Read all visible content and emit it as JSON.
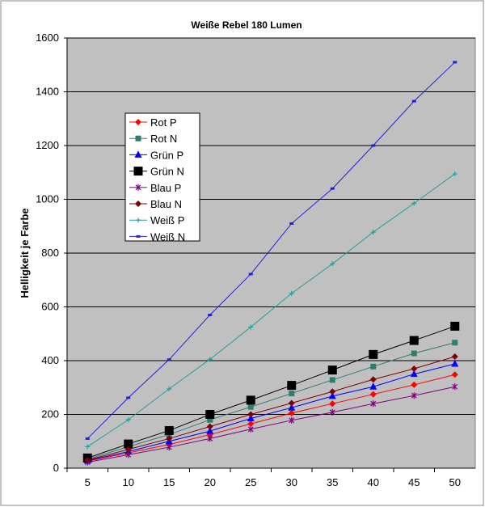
{
  "chart_data": {
    "type": "line",
    "title": "Weiße Rebel 180 Lumen",
    "xlabel": "",
    "ylabel": "Helligkeit je Farbe",
    "ylim": [
      0,
      1600
    ],
    "yticks": [
      0,
      200,
      400,
      600,
      800,
      1000,
      1200,
      1400,
      1600
    ],
    "categories": [
      "5",
      "10",
      "15",
      "20",
      "25",
      "30",
      "35",
      "40",
      "45",
      "50"
    ],
    "grid": true,
    "legend_position": "upper-left-inside",
    "series": [
      {
        "name": "Rot P",
        "color": "#ff0000",
        "marker": "diamond",
        "values": [
          26,
          57,
          88,
          125,
          165,
          205,
          240,
          275,
          310,
          348
        ]
      },
      {
        "name": "Rot N",
        "color": "#2e7d6e",
        "marker": "square",
        "values": [
          33,
          80,
          125,
          180,
          228,
          278,
          328,
          378,
          427,
          467
        ]
      },
      {
        "name": "Grün P",
        "color": "#0000ff",
        "marker": "triangle",
        "values": [
          28,
          62,
          100,
          138,
          185,
          225,
          268,
          303,
          350,
          388
        ]
      },
      {
        "name": "Grün N",
        "color": "#000000",
        "marker": "bigsquare",
        "values": [
          38,
          90,
          140,
          200,
          253,
          308,
          365,
          423,
          475,
          528
        ]
      },
      {
        "name": "Blau P",
        "color": "#800080",
        "marker": "star",
        "values": [
          22,
          50,
          78,
          110,
          145,
          178,
          208,
          240,
          270,
          303
        ]
      },
      {
        "name": "Blau N",
        "color": "#800000",
        "marker": "diamond",
        "values": [
          30,
          70,
          110,
          155,
          200,
          242,
          285,
          330,
          370,
          415
        ]
      },
      {
        "name": "Weiß P",
        "color": "#20a0a0",
        "marker": "plus",
        "values": [
          80,
          180,
          295,
          405,
          525,
          650,
          760,
          878,
          985,
          1095
        ]
      },
      {
        "name": "Weiß N",
        "color": "#2020e0",
        "marker": "dash",
        "values": [
          110,
          262,
          404,
          570,
          722,
          910,
          1040,
          1200,
          1365,
          1510
        ]
      }
    ]
  }
}
